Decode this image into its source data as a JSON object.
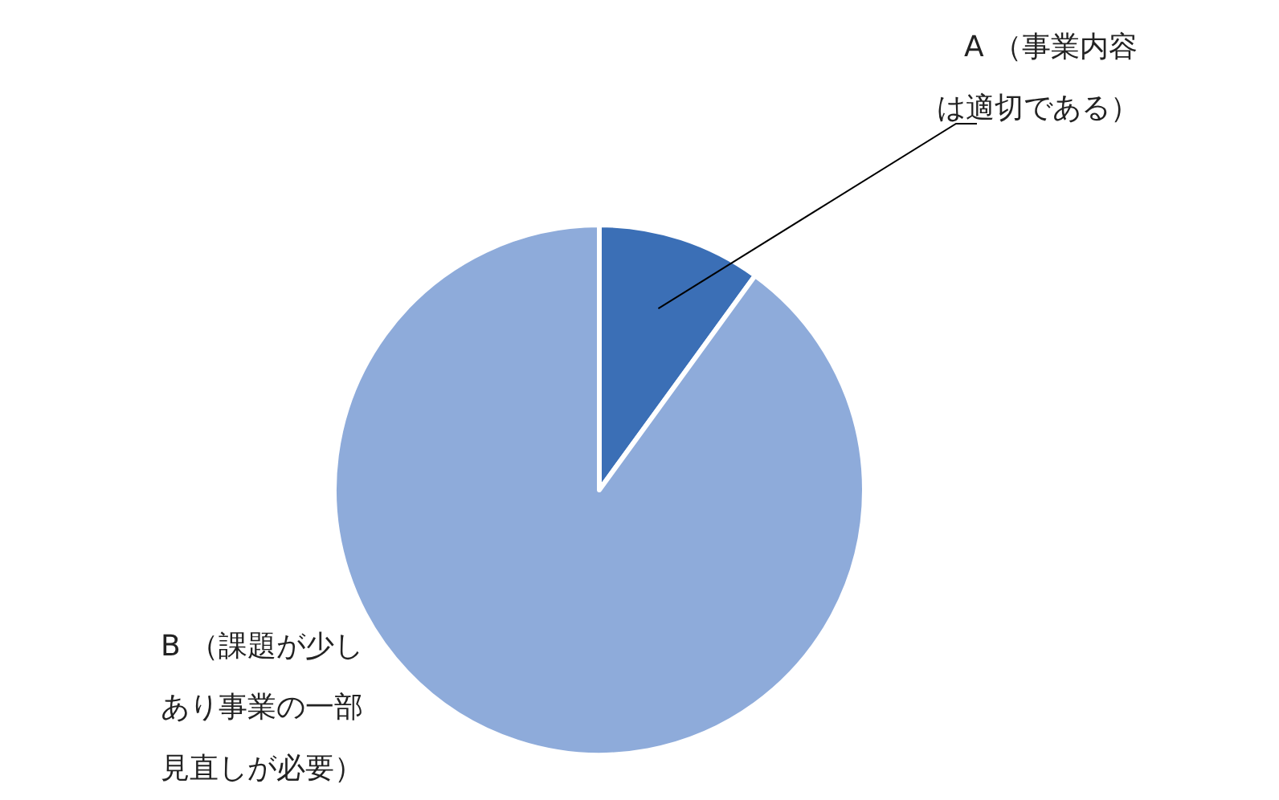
{
  "chart_data": {
    "type": "pie",
    "categories": [
      "A （事業内容は適切である）",
      "B （課題が少しあり事業の一部見直しが必要）"
    ],
    "values": [
      10,
      90
    ],
    "colors": [
      "#3b6fb6",
      "#8eabda"
    ],
    "legend": false
  }
}
